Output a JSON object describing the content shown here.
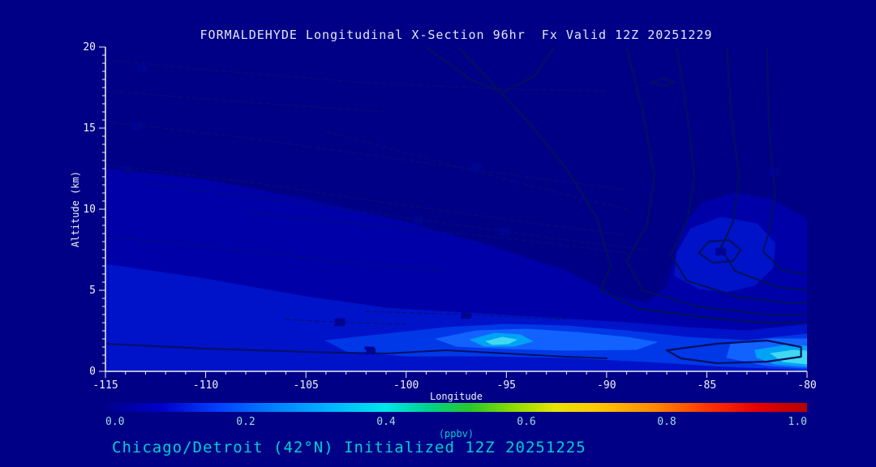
{
  "caption": "Chicago/Detroit (42°N) Initialized 12Z 20251225",
  "colors": {
    "background": "#000087",
    "axis": "#F2F2F2",
    "title_text": "#E4E4F6",
    "cyan_text": "#00CFCF",
    "colorbar_numbers": "#9ADEDE",
    "contour_line": "#001060",
    "dashed_line": "#001368",
    "label_halo": "#0000A0"
  },
  "chart_data": {
    "type": "contour",
    "title": "FORMALDEHYDE Longitudinal X-Section 96hr  Fx Valid 12Z 20251229",
    "xlabel": "Longitude",
    "ylabel": "Altitude (km)",
    "xlim": [
      -115,
      -80
    ],
    "ylim": [
      0,
      20
    ],
    "xticks": [
      -115,
      -110,
      -105,
      -100,
      -95,
      -90,
      -85,
      -80
    ],
    "yticks": [
      0,
      5,
      10,
      15,
      20
    ],
    "grid": false,
    "colorbar": {
      "label": "(ppbv)",
      "tick_labels": [
        "0.0",
        "0.2",
        "0.4",
        "0.6",
        "0.8",
        "1.0"
      ],
      "tick_values": [
        0.0,
        0.2,
        0.4,
        0.6,
        0.8,
        1.0
      ],
      "stops": [
        [
          0.0,
          "#00008B"
        ],
        [
          0.08,
          "#0000C8"
        ],
        [
          0.16,
          "#0040FF"
        ],
        [
          0.24,
          "#0080FF"
        ],
        [
          0.32,
          "#00B4FF"
        ],
        [
          0.4,
          "#00E6E6"
        ],
        [
          0.46,
          "#00D28C"
        ],
        [
          0.52,
          "#28C828"
        ],
        [
          0.58,
          "#8CDC00"
        ],
        [
          0.64,
          "#E6E600"
        ],
        [
          0.7,
          "#FFC800"
        ],
        [
          0.78,
          "#FF8C00"
        ],
        [
          0.86,
          "#FF3200"
        ],
        [
          0.93,
          "#E60000"
        ],
        [
          1.0,
          "#B40000"
        ]
      ]
    },
    "fill_regions": [
      {
        "level": 0.05,
        "color": "#0000A8",
        "points": [
          [
            -115,
            12.5
          ],
          [
            -110,
            11.8
          ],
          [
            -105,
            10.6
          ],
          [
            -100,
            9.2
          ],
          [
            -96,
            7.8
          ],
          [
            -92,
            6.2
          ],
          [
            -89.5,
            4.6
          ],
          [
            -88,
            4.2
          ],
          [
            -87,
            5.2
          ],
          [
            -86.6,
            7
          ],
          [
            -86.2,
            9
          ],
          [
            -85.2,
            10.4
          ],
          [
            -83.6,
            11
          ],
          [
            -81.8,
            10.6
          ],
          [
            -80,
            9.4
          ],
          [
            -80,
            0
          ],
          [
            -115,
            0
          ]
        ]
      },
      {
        "level": 0.1,
        "color": "#0013C8",
        "points": [
          [
            -115,
            6.6
          ],
          [
            -110,
            5.7
          ],
          [
            -105,
            4.6
          ],
          [
            -101,
            3.9
          ],
          [
            -97,
            3.6
          ],
          [
            -93,
            3.3
          ],
          [
            -89,
            3.0
          ],
          [
            -86,
            2.7
          ],
          [
            -83,
            2.5
          ],
          [
            -80,
            2.9
          ],
          [
            -80,
            0
          ],
          [
            -115,
            0
          ]
        ]
      },
      {
        "level": 0.1,
        "color": "#0013C8",
        "points": [
          [
            -86.6,
            5.9
          ],
          [
            -85.4,
            5.1
          ],
          [
            -84,
            4.9
          ],
          [
            -82.6,
            5.3
          ],
          [
            -81.7,
            6.4
          ],
          [
            -81.6,
            7.9
          ],
          [
            -82.5,
            9.1
          ],
          [
            -84.3,
            9.5
          ],
          [
            -85.8,
            8.8
          ],
          [
            -86.5,
            7.3
          ]
        ]
      },
      {
        "level": 0.15,
        "color": "#0038E8",
        "points": [
          [
            -104,
            1.9
          ],
          [
            -101,
            2.3
          ],
          [
            -98,
            2.7
          ],
          [
            -95,
            2.9
          ],
          [
            -92,
            2.8
          ],
          [
            -89,
            2.5
          ],
          [
            -86,
            2.1
          ],
          [
            -83,
            1.9
          ],
          [
            -80,
            2.3
          ],
          [
            -80,
            0.1
          ],
          [
            -84,
            0.3
          ],
          [
            -88,
            0.6
          ],
          [
            -92,
            0.85
          ],
          [
            -96,
            0.95
          ],
          [
            -100,
            0.95
          ],
          [
            -103,
            1.25
          ]
        ]
      },
      {
        "level": 0.2,
        "color": "#1262FF",
        "points": [
          [
            -98.5,
            2.0
          ],
          [
            -96.5,
            2.5
          ],
          [
            -94,
            2.6
          ],
          [
            -91.5,
            2.4
          ],
          [
            -89,
            2.1
          ],
          [
            -87.5,
            1.8
          ],
          [
            -88.5,
            1.35
          ],
          [
            -92,
            1.3
          ],
          [
            -95,
            1.4
          ],
          [
            -97.5,
            1.55
          ]
        ]
      },
      {
        "level": 0.2,
        "color": "#1262FF",
        "points": [
          [
            -83.8,
            1.7
          ],
          [
            -81.8,
            2.0
          ],
          [
            -80,
            2.0
          ],
          [
            -80,
            0.2
          ],
          [
            -82,
            0.35
          ],
          [
            -84,
            0.85
          ]
        ]
      },
      {
        "level": 0.3,
        "color": "#00A2F5",
        "points": [
          [
            -96.8,
            1.95
          ],
          [
            -95.6,
            2.35
          ],
          [
            -94.3,
            2.25
          ],
          [
            -93.7,
            1.85
          ],
          [
            -94.6,
            1.55
          ],
          [
            -96.1,
            1.55
          ]
        ]
      },
      {
        "level": 0.3,
        "color": "#00A2F5",
        "points": [
          [
            -82.6,
            1.3
          ],
          [
            -81.1,
            1.6
          ],
          [
            -80,
            1.55
          ],
          [
            -80,
            0.3
          ],
          [
            -81.6,
            0.45
          ],
          [
            -82.5,
            0.85
          ]
        ]
      },
      {
        "level": 0.4,
        "color": "#3FD9F0",
        "points": [
          [
            -96,
            1.85
          ],
          [
            -95.2,
            2.1
          ],
          [
            -94.5,
            1.95
          ],
          [
            -94.9,
            1.7
          ],
          [
            -95.7,
            1.65
          ]
        ]
      },
      {
        "level": 0.4,
        "color": "#3FD9F0",
        "points": [
          [
            -81.8,
            1.1
          ],
          [
            -80.7,
            1.3
          ],
          [
            -80,
            1.25
          ],
          [
            -80,
            0.45
          ],
          [
            -81.2,
            0.6
          ]
        ]
      }
    ],
    "contour_lines": [
      {
        "style": "solid",
        "width": 2.2,
        "closed": false,
        "points": [
          [
            -99,
            20
          ],
          [
            -96.8,
            18
          ],
          [
            -95.2,
            17.2
          ],
          [
            -93.6,
            18.2
          ],
          [
            -92.6,
            20
          ]
        ]
      },
      {
        "style": "solid",
        "width": 2.4,
        "closed": false,
        "points": [
          [
            -97.4,
            20
          ],
          [
            -94,
            15.5
          ],
          [
            -92,
            12.5
          ],
          [
            -90.5,
            9.5
          ],
          [
            -89.8,
            6.5
          ],
          [
            -90.3,
            5
          ],
          [
            -88.5,
            3.9
          ],
          [
            -85,
            3.3
          ],
          [
            -82,
            3.0
          ],
          [
            -80,
            3.0
          ]
        ]
      },
      {
        "style": "solid",
        "width": 2.2,
        "closed": false,
        "points": [
          [
            -89,
            20
          ],
          [
            -88.2,
            16
          ],
          [
            -87.6,
            12
          ],
          [
            -88,
            9
          ],
          [
            -89,
            6.8
          ],
          [
            -88.2,
            5
          ],
          [
            -85.5,
            4.0
          ],
          [
            -82,
            3.5
          ],
          [
            -80,
            3.5
          ]
        ]
      },
      {
        "style": "solid",
        "width": 2.2,
        "closed": false,
        "points": [
          [
            -86.5,
            20
          ],
          [
            -86,
            16
          ],
          [
            -85.6,
            12
          ],
          [
            -86,
            9.2
          ],
          [
            -86.8,
            7.2
          ],
          [
            -86,
            5.6
          ],
          [
            -83.5,
            4.6
          ],
          [
            -80.8,
            4.2
          ],
          [
            -80,
            4.2
          ]
        ]
      },
      {
        "style": "solid",
        "width": 2.2,
        "closed": false,
        "points": [
          [
            -84,
            20
          ],
          [
            -83.8,
            16
          ],
          [
            -83.4,
            12
          ],
          [
            -83.7,
            9.2
          ],
          [
            -84.3,
            7.6
          ],
          [
            -83.6,
            6.2
          ],
          [
            -81.5,
            5.2
          ],
          [
            -80,
            5.0
          ]
        ]
      },
      {
        "style": "solid",
        "width": 2.0,
        "closed": false,
        "points": [
          [
            -82,
            20
          ],
          [
            -81.9,
            15
          ],
          [
            -81.6,
            11
          ],
          [
            -81.9,
            8.6
          ],
          [
            -82.2,
            7.4
          ],
          [
            -81.2,
            6.2
          ],
          [
            -80,
            6.0
          ]
        ]
      },
      {
        "style": "solid",
        "width": 2.2,
        "closed": true,
        "points": [
          [
            -85.4,
            7.3
          ],
          [
            -84.9,
            8.0
          ],
          [
            -83.9,
            8.1
          ],
          [
            -83.3,
            7.5
          ],
          [
            -83.7,
            6.8
          ],
          [
            -84.7,
            6.7
          ]
        ]
      },
      {
        "style": "solid",
        "width": 1.8,
        "closed": true,
        "points": [
          [
            -87.8,
            17.8
          ],
          [
            -87.2,
            18.05
          ],
          [
            -86.6,
            17.85
          ],
          [
            -87.1,
            17.6
          ]
        ]
      },
      {
        "style": "solid",
        "width": 2.0,
        "closed": false,
        "points": [
          [
            -115,
            1.7
          ],
          [
            -110,
            1.4
          ],
          [
            -105,
            1.2
          ],
          [
            -101,
            1.1
          ],
          [
            -98,
            1.3
          ],
          [
            -95,
            1.1
          ],
          [
            -92,
            0.9
          ],
          [
            -90,
            0.8
          ]
        ]
      },
      {
        "style": "solid",
        "width": 2.2,
        "closed": true,
        "points": [
          [
            -87,
            1.3
          ],
          [
            -84.5,
            1.7
          ],
          [
            -82,
            1.9
          ],
          [
            -80.3,
            1.5
          ],
          [
            -80.3,
            0.9
          ],
          [
            -82,
            0.6
          ],
          [
            -84.5,
            0.5
          ],
          [
            -86.3,
            0.8
          ]
        ]
      },
      {
        "style": "dashed",
        "width": 1,
        "closed": false,
        "points": [
          [
            -115,
            19.2
          ],
          [
            -109,
            18.5
          ],
          [
            -102,
            17.8
          ],
          [
            -95,
            17.4
          ],
          [
            -90,
            17.3
          ]
        ]
      },
      {
        "style": "dashed",
        "width": 1,
        "closed": false,
        "points": [
          [
            -115,
            17.3
          ],
          [
            -108,
            16.6
          ],
          [
            -101,
            16.0
          ]
        ]
      },
      {
        "style": "dashed",
        "width": 1,
        "closed": false,
        "points": [
          [
            -115,
            15.4
          ],
          [
            -108,
            14.4
          ],
          [
            -101,
            13.2
          ],
          [
            -94,
            12.0
          ],
          [
            -89,
            11.2
          ]
        ]
      },
      {
        "style": "dashed",
        "width": 1,
        "closed": false,
        "points": [
          [
            -115,
            12.7
          ],
          [
            -108,
            11.7
          ],
          [
            -101,
            10.4
          ],
          [
            -94,
            9.2
          ],
          [
            -89,
            8.4
          ]
        ]
      },
      {
        "style": "dashed",
        "width": 1,
        "closed": false,
        "points": [
          [
            -113,
            11.6
          ],
          [
            -106,
            10.5
          ],
          [
            -99,
            9.3
          ],
          [
            -92,
            8.1
          ],
          [
            -88,
            7.5
          ]
        ]
      },
      {
        "style": "dashed",
        "width": 1,
        "closed": false,
        "points": [
          [
            -108,
            9.8
          ],
          [
            -101,
            8.9
          ],
          [
            -95,
            8.2
          ],
          [
            -89,
            7.3
          ]
        ]
      },
      {
        "style": "dashed",
        "width": 1,
        "closed": false,
        "points": [
          [
            -104,
            14.8
          ],
          [
            -98,
            12.8
          ],
          [
            -93,
            11.2
          ],
          [
            -89,
            10.0
          ]
        ]
      },
      {
        "style": "dashed",
        "width": 1,
        "closed": false,
        "points": [
          [
            -115,
            8.3
          ],
          [
            -109,
            7.6
          ],
          [
            -103,
            6.7
          ],
          [
            -98,
            6.2
          ]
        ]
      },
      {
        "style": "dashed",
        "width": 1,
        "closed": false,
        "points": [
          [
            -102,
            3.7
          ],
          [
            -97,
            3.5
          ],
          [
            -92,
            3.2
          ]
        ]
      },
      {
        "style": "dashed",
        "width": 1,
        "closed": false,
        "points": [
          [
            -106,
            3.2
          ],
          [
            -103,
            3.0
          ],
          [
            -100,
            2.9
          ]
        ]
      }
    ],
    "line_labels": [
      {
        "text": "70",
        "x": -113.2,
        "y": 18.65
      },
      {
        "text": "20",
        "x": -113.4,
        "y": 15.1
      },
      {
        "text": "30",
        "x": -113.9,
        "y": 12.4
      },
      {
        "text": "10",
        "x": -96.5,
        "y": 12.6
      },
      {
        "text": "30",
        "x": -99.4,
        "y": 9.3
      },
      {
        "text": "20",
        "x": -95.1,
        "y": 8.6
      },
      {
        "text": "25",
        "x": -103.3,
        "y": 3.0
      },
      {
        "text": "35",
        "x": -97.0,
        "y": 3.45
      },
      {
        "text": "70",
        "x": -101.8,
        "y": 1.25
      },
      {
        "text": "30",
        "x": -84.3,
        "y": 7.35
      },
      {
        "text": "50",
        "x": -81.6,
        "y": 12.3
      }
    ]
  }
}
